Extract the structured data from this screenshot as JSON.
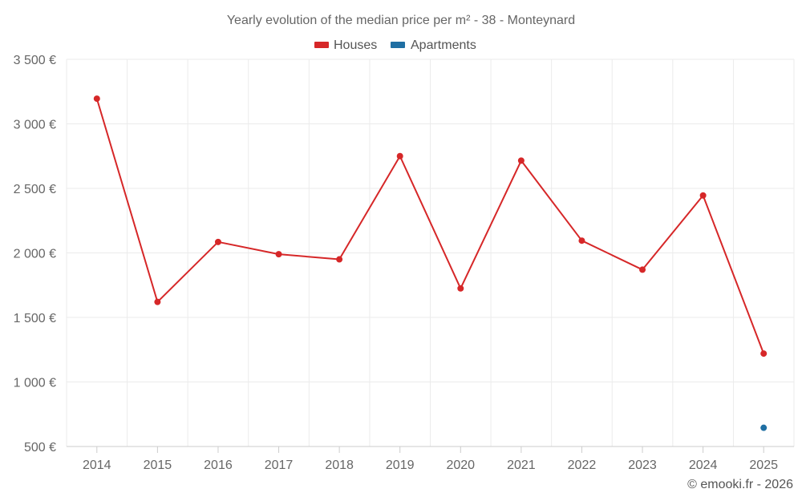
{
  "chart_data": {
    "type": "line",
    "title": "Yearly evolution of the median price per m² - 38 - Monteynard",
    "categories": [
      "2014",
      "2015",
      "2016",
      "2017",
      "2018",
      "2019",
      "2020",
      "2021",
      "2022",
      "2023",
      "2024",
      "2025"
    ],
    "series": [
      {
        "name": "Houses",
        "color": "#d62728",
        "values": [
          3195,
          1620,
          2085,
          1990,
          1950,
          2750,
          1725,
          2715,
          2095,
          1870,
          2445,
          1220
        ]
      },
      {
        "name": "Apartments",
        "color": "#1f6fa3",
        "values": [
          null,
          null,
          null,
          null,
          null,
          null,
          null,
          null,
          null,
          null,
          null,
          645
        ]
      }
    ],
    "y_ticks": [
      500,
      1000,
      1500,
      2000,
      2500,
      3000,
      3500
    ],
    "y_tick_labels": [
      "500 €",
      "1 000 €",
      "1 500 €",
      "2 000 €",
      "2 500 €",
      "3 000 €",
      "3 500 €"
    ],
    "ylim": [
      500,
      3500
    ],
    "xlabel": "",
    "ylabel": "",
    "grid": true,
    "legend_position": "top-center"
  },
  "credit": "© emooki.fr - 2026"
}
